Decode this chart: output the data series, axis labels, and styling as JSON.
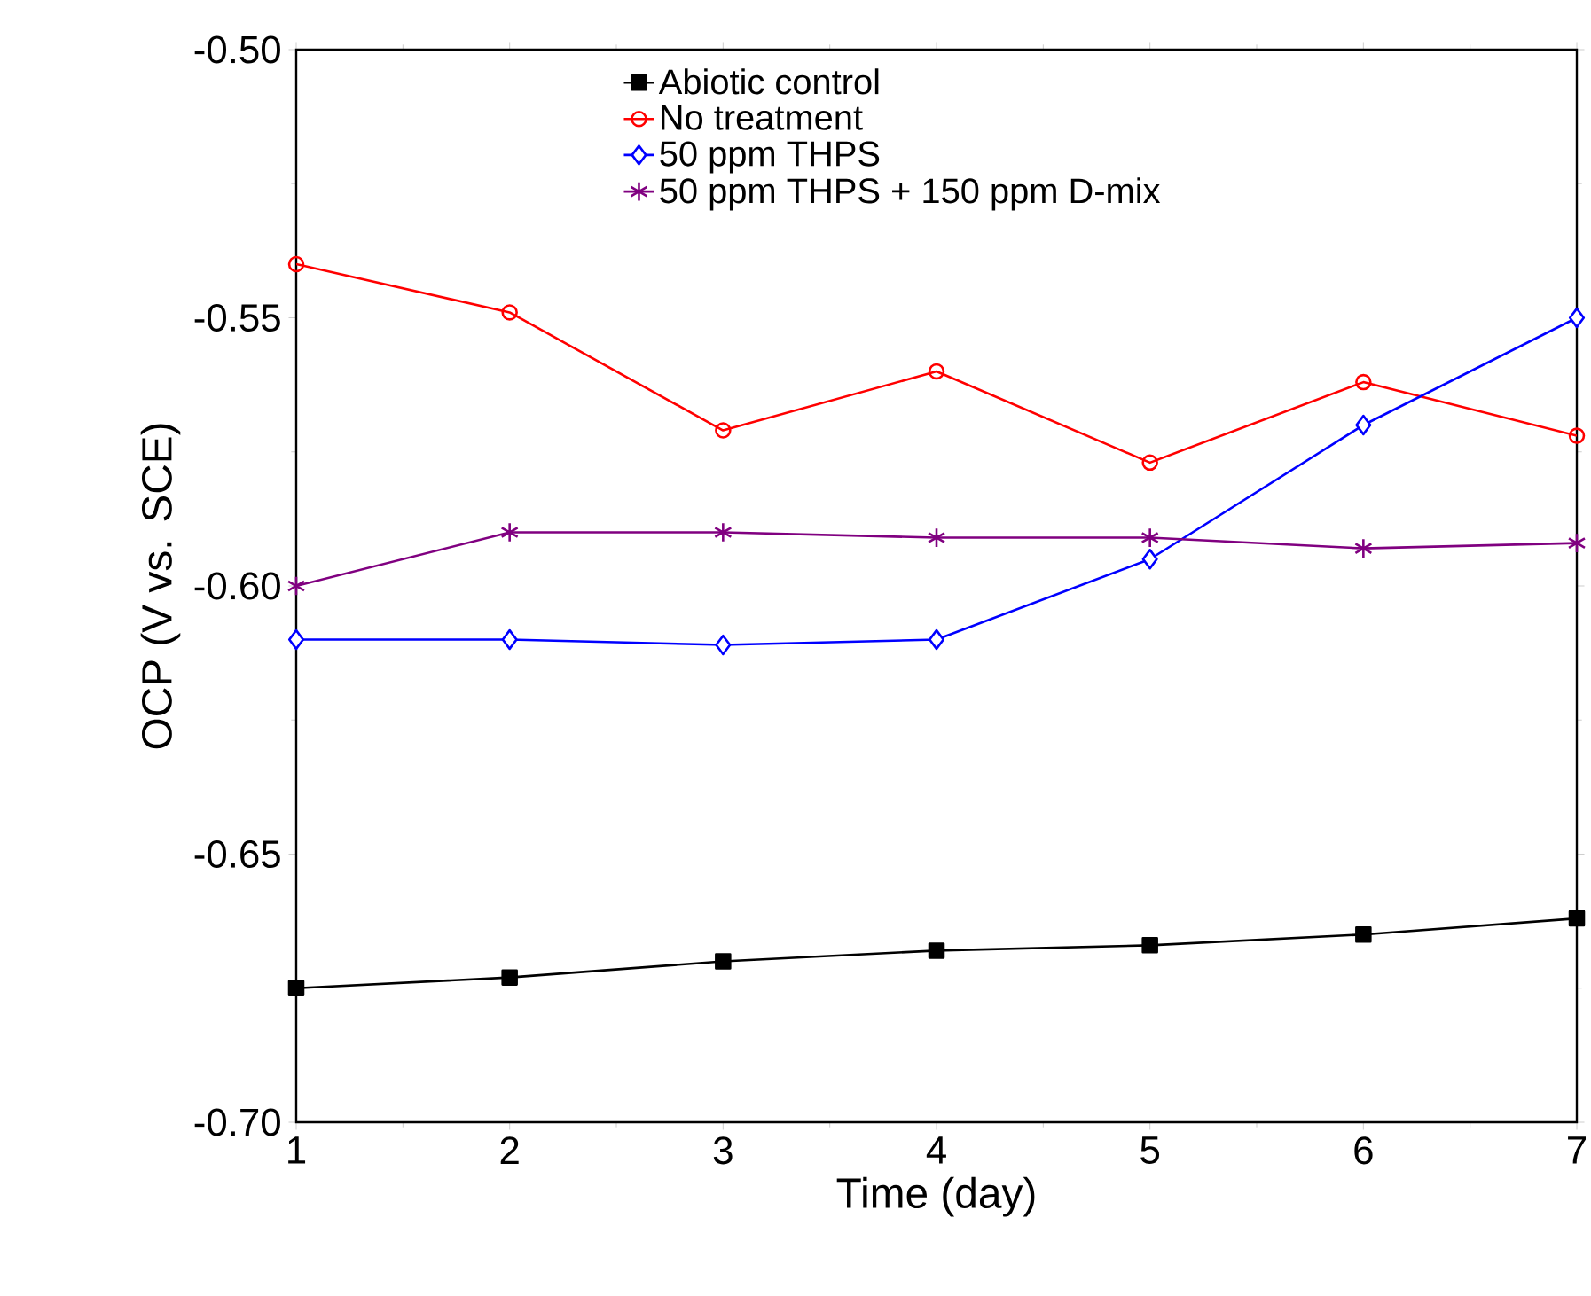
{
  "chart_data": {
    "type": "line",
    "xlabel": "Time (day)",
    "ylabel": "OCP (V vs. SCE)",
    "x": [
      1,
      2,
      3,
      4,
      5,
      6,
      7
    ],
    "series": [
      {
        "name": "Abiotic control",
        "color": "#000000",
        "marker": "square",
        "values": [
          -0.675,
          -0.673,
          -0.67,
          -0.668,
          -0.667,
          -0.665,
          -0.662
        ]
      },
      {
        "name": "No treatment",
        "color": "#ff0000",
        "marker": "circle",
        "values": [
          -0.54,
          -0.549,
          -0.571,
          -0.56,
          -0.577,
          -0.562,
          -0.572
        ]
      },
      {
        "name": "50 ppm THPS",
        "color": "#0000ff",
        "marker": "diamond",
        "values": [
          -0.61,
          -0.61,
          -0.611,
          -0.61,
          -0.595,
          -0.57,
          -0.55
        ]
      },
      {
        "name": "50 ppm THPS + 150 ppm D-mix",
        "color": "#800080",
        "marker": "cross",
        "values": [
          -0.6,
          -0.59,
          -0.59,
          -0.591,
          -0.591,
          -0.593,
          -0.592
        ]
      }
    ],
    "xlim": [
      1,
      7
    ],
    "xticks": [
      1,
      2,
      3,
      4,
      5,
      6,
      7
    ],
    "ylim": [
      -0.7,
      -0.5
    ],
    "yticks": [
      {
        "value": -0.7,
        "label": "-0.70"
      },
      {
        "value": -0.65,
        "label": "-0.65"
      },
      {
        "value": -0.6,
        "label": "-0.60"
      },
      {
        "value": -0.55,
        "label": "-0.55"
      },
      {
        "value": -0.5,
        "label": "-0.50"
      }
    ],
    "legend": "top",
    "grid": false,
    "line_style": "solid"
  }
}
